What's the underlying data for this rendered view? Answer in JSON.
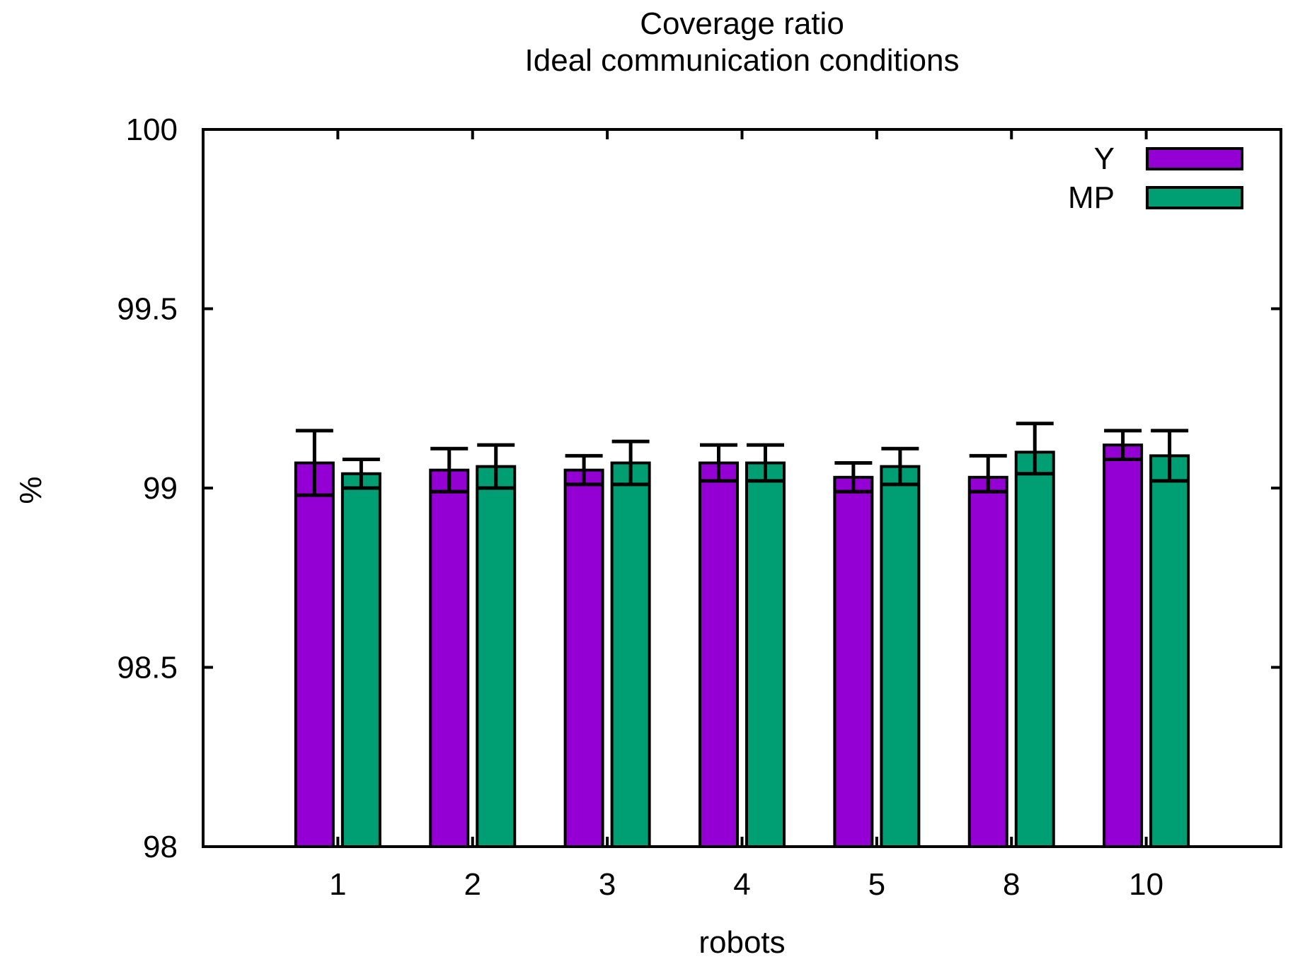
{
  "title": "Coverage ratio",
  "subtitle": "Ideal communication conditions",
  "legend": {
    "entries": [
      {
        "label": "Y",
        "color": "#9400d3"
      },
      {
        "label": "MP",
        "color": "#009e73"
      }
    ]
  },
  "chart_data": {
    "type": "bar",
    "title": "Coverage ratio",
    "subtitle": "Ideal communication conditions",
    "xlabel": "robots",
    "ylabel": "%",
    "categories": [
      "1",
      "2",
      "3",
      "4",
      "5",
      "8",
      "10"
    ],
    "series": [
      {
        "name": "Y",
        "color": "#9400d3",
        "values": [
          99.07,
          99.05,
          99.05,
          99.07,
          99.03,
          99.03,
          99.12
        ],
        "err_low": [
          98.98,
          98.99,
          99.01,
          99.02,
          98.99,
          98.99,
          99.08
        ],
        "err_high": [
          99.16,
          99.11,
          99.09,
          99.12,
          99.07,
          99.09,
          99.16
        ]
      },
      {
        "name": "MP",
        "color": "#009e73",
        "values": [
          99.04,
          99.06,
          99.07,
          99.07,
          99.06,
          99.1,
          99.09
        ],
        "err_low": [
          99.0,
          99.0,
          99.01,
          99.02,
          99.01,
          99.04,
          99.02
        ],
        "err_high": [
          99.08,
          99.12,
          99.13,
          99.12,
          99.11,
          99.18,
          99.16
        ]
      }
    ],
    "ylim": [
      98,
      100
    ],
    "yticks": [
      98,
      98.5,
      99,
      99.5,
      100
    ],
    "ytick_labels": [
      "98",
      "98.5",
      "99",
      "99.5",
      "100"
    ],
    "legend_position": "top-right",
    "grid": false,
    "axis_color": "#000000",
    "text_color": "#000000"
  }
}
